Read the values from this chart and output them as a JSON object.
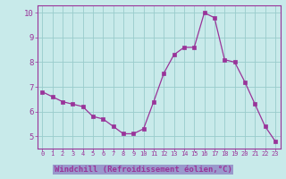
{
  "hours": [
    0,
    1,
    2,
    3,
    4,
    5,
    6,
    7,
    8,
    9,
    10,
    11,
    12,
    13,
    14,
    15,
    16,
    17,
    18,
    19,
    20,
    21,
    22,
    23
  ],
  "values": [
    6.8,
    6.6,
    6.4,
    6.3,
    6.2,
    5.8,
    5.7,
    5.4,
    5.1,
    5.1,
    5.3,
    6.4,
    7.55,
    8.3,
    8.6,
    8.6,
    10.0,
    9.8,
    8.1,
    8.0,
    7.2,
    6.3,
    5.4,
    4.8
  ],
  "line_color": "#993399",
  "marker_color": "#993399",
  "bg_color": "#c8eaea",
  "grid_color": "#99cccc",
  "axis_color": "#993399",
  "xlabel": "Windchill (Refroidissement éolien,°C)",
  "xlabel_color": "#993399",
  "xlabel_bg": "#9999cc",
  "ylim": [
    4.5,
    10.3
  ],
  "yticks": [
    5,
    6,
    7,
    8,
    9,
    10
  ],
  "xlim": [
    -0.5,
    23.5
  ]
}
